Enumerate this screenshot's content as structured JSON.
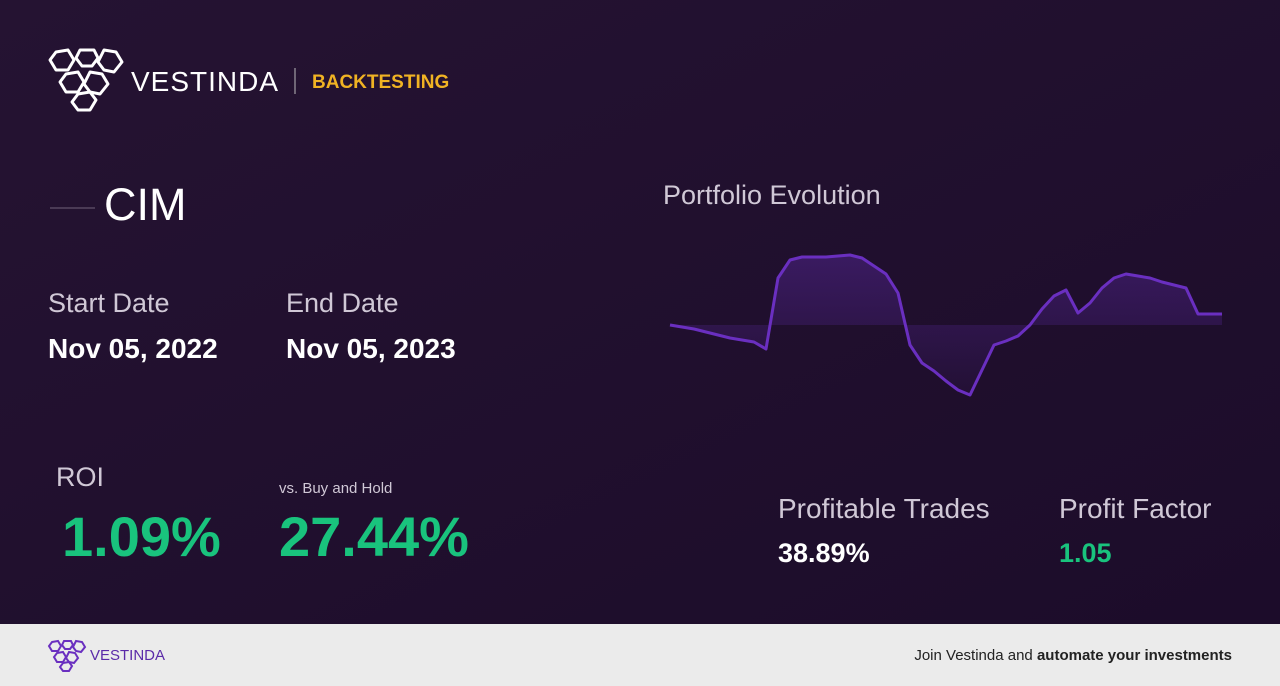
{
  "header": {
    "brand": "VESTINDA",
    "section": "BACKTESTING"
  },
  "ticker": "CIM",
  "dates": {
    "start_label": "Start Date",
    "start": "Nov 05, 2022",
    "end_label": "End Date",
    "end": "Nov 05, 2023"
  },
  "chart_data": {
    "type": "line",
    "title": "Portfolio Evolution",
    "color": "#6a2fc0",
    "values": [
      0,
      -2,
      -4,
      -7,
      -10,
      -13,
      -15,
      -17,
      -24,
      47,
      65,
      68,
      68,
      68,
      69,
      70,
      67,
      59,
      51,
      32,
      -20,
      -38,
      -46,
      -56,
      -65,
      -70,
      -45,
      -20,
      -16,
      -11,
      0,
      16,
      29,
      35,
      12,
      22,
      37,
      47,
      51,
      49,
      47,
      43,
      40,
      37,
      11,
      11,
      11
    ],
    "ylim": [
      -75,
      75
    ]
  },
  "metrics": {
    "roi_label": "ROI",
    "roi": "1.09%",
    "bh_label": "vs. Buy and Hold",
    "bh": "27.44%",
    "trades_label": "Profitable Trades",
    "trades": "38.89%",
    "pf_label": "Profit Factor",
    "pf": "1.05"
  },
  "footer": {
    "brand": "VESTINDA",
    "cta": "Join Vestinda and",
    "cta_bold": "automate your investments"
  }
}
